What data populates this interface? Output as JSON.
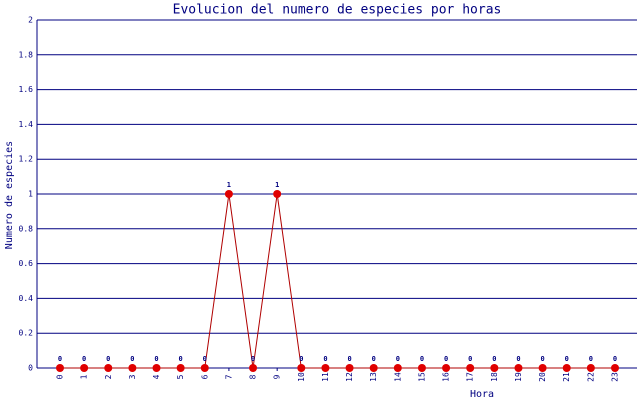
{
  "chart_data": {
    "type": "line",
    "title": "Evolucion del numero de especies por horas",
    "x_label": "Hora",
    "y_label": "Numero de especies",
    "categories": [
      "0",
      "1",
      "2",
      "3",
      "4",
      "5",
      "6",
      "7",
      "8",
      "9",
      "10",
      "11",
      "12",
      "13",
      "14",
      "15",
      "16",
      "17",
      "18",
      "19",
      "20",
      "21",
      "22",
      "23"
    ],
    "series": [
      {
        "name": "especies",
        "color": "#b00000",
        "marker_color": "#e00000",
        "values": [
          0,
          0,
          0,
          0,
          0,
          0,
          0,
          1,
          0,
          1,
          0,
          0,
          0,
          0,
          0,
          0,
          0,
          0,
          0,
          0,
          0,
          0,
          0,
          0
        ]
      }
    ],
    "ylim": [
      0,
      2
    ],
    "yticks": [
      0,
      0.2,
      0.4,
      0.6,
      0.8,
      1,
      1.2,
      1.4,
      1.6,
      1.8,
      2
    ],
    "grid": true,
    "data_labels": true
  }
}
